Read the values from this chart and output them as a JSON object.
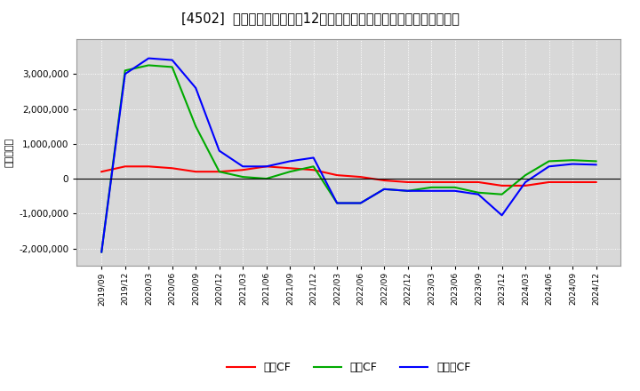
{
  "title": "[4502]  キャッシュフローの12か月移動合計の対前年同期増減額の推移",
  "ylabel": "（百万円）",
  "background_color": "#ffffff",
  "plot_bg_color": "#d8d8d8",
  "grid_color": "#ffffff",
  "x_labels": [
    "2019/09",
    "2019/12",
    "2020/03",
    "2020/06",
    "2020/09",
    "2020/12",
    "2021/03",
    "2021/06",
    "2021/09",
    "2021/12",
    "2022/03",
    "2022/06",
    "2022/09",
    "2022/12",
    "2023/03",
    "2023/06",
    "2023/09",
    "2023/12",
    "2024/03",
    "2024/06",
    "2024/09",
    "2024/12"
  ],
  "operating_cf": [
    200000,
    350000,
    350000,
    300000,
    200000,
    200000,
    250000,
    350000,
    300000,
    250000,
    100000,
    50000,
    -50000,
    -100000,
    -100000,
    -100000,
    -100000,
    -200000,
    -200000,
    -100000,
    -100000,
    -100000
  ],
  "investing_cf": [
    -2100000,
    3100000,
    3250000,
    3200000,
    1500000,
    200000,
    50000,
    0,
    200000,
    350000,
    -700000,
    -700000,
    -300000,
    -350000,
    -250000,
    -250000,
    -400000,
    -450000,
    100000,
    500000,
    530000,
    500000
  ],
  "free_cf": [
    -2100000,
    3000000,
    3450000,
    3400000,
    2600000,
    800000,
    350000,
    350000,
    500000,
    600000,
    -700000,
    -700000,
    -300000,
    -350000,
    -350000,
    -350000,
    -450000,
    -1050000,
    -100000,
    350000,
    420000,
    400000
  ],
  "operating_color": "#ff0000",
  "investing_color": "#00aa00",
  "free_color": "#0000ff",
  "legend_labels": [
    "営業CF",
    "投資CF",
    "フリーCF"
  ],
  "ylim": [
    -2500000,
    4000000
  ],
  "yticks": [
    -2000000,
    -1000000,
    0,
    1000000,
    2000000,
    3000000
  ]
}
